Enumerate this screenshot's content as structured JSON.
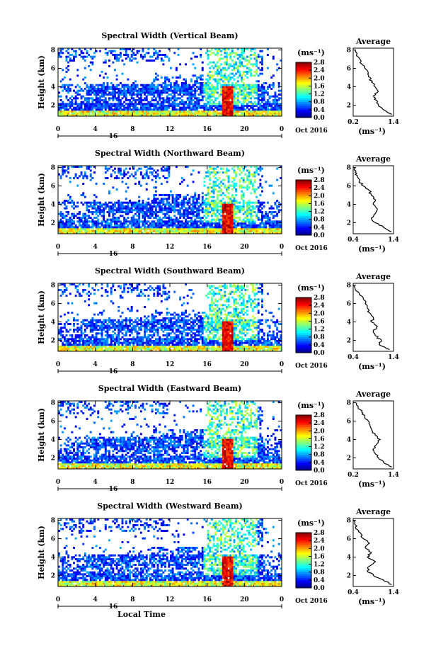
{
  "figure": {
    "xlabel": "Local Time",
    "date_label": "Oct 2016",
    "day_label": "16",
    "y_label": "Height (km)",
    "unit_label": "(ms⁻¹)",
    "average_title": "Average",
    "x_ticks": [
      "0",
      "4",
      "8",
      "12",
      "16",
      "20",
      "0"
    ],
    "y_ticks": [
      "2",
      "4",
      "6",
      "8"
    ],
    "colorbar_ticks": [
      "0.0",
      "0.4",
      "0.8",
      "1.2",
      "1.6",
      "2.0",
      "2.4",
      "2.8"
    ]
  },
  "colors": {
    "colormap": [
      "#000080",
      "#0000ff",
      "#0080ff",
      "#00ffff",
      "#80ff80",
      "#ffff00",
      "#ff8000",
      "#ff0000",
      "#800000"
    ],
    "axis": "#000000",
    "profile_line": "#000000"
  },
  "chart_data": [
    {
      "type": "heatmap",
      "title": "Spectral Width (Vertical Beam)",
      "xlabel": "",
      "ylabel": "Height (km)",
      "xlim": [
        0,
        24
      ],
      "ylim": [
        0.8,
        8.2
      ],
      "colorbar_range": [
        0.0,
        2.8
      ],
      "profile": {
        "title": "Average",
        "xlabel": "(ms⁻¹)",
        "xticks": [
          "0.2",
          "1.4"
        ],
        "xlim": [
          0.2,
          1.4
        ],
        "heights": [
          1.0,
          1.5,
          2.0,
          2.5,
          3.0,
          3.5,
          4.0,
          4.5,
          5.0,
          5.5,
          6.0,
          6.5,
          7.0,
          7.5,
          8.0
        ],
        "values": [
          1.35,
          1.1,
          0.95,
          0.9,
          0.8,
          0.95,
          0.85,
          0.75,
          0.7,
          0.65,
          0.55,
          0.45,
          0.4,
          0.3,
          0.25
        ]
      }
    },
    {
      "type": "heatmap",
      "title": "Spectral Width (Northward Beam)",
      "xlabel": "",
      "ylabel": "Height (km)",
      "xlim": [
        0,
        24
      ],
      "ylim": [
        0.8,
        8.2
      ],
      "colorbar_range": [
        0.0,
        2.8
      ],
      "profile": {
        "title": "Average",
        "xlabel": "(ms⁻¹)",
        "xticks": [
          "0.4",
          "1.4"
        ],
        "xlim": [
          0.4,
          1.4
        ],
        "heights": [
          1.0,
          1.5,
          2.0,
          2.5,
          3.0,
          3.5,
          4.0,
          4.5,
          5.0,
          5.5,
          6.0,
          6.5,
          7.0,
          7.5,
          8.0
        ],
        "values": [
          1.35,
          1.15,
          0.95,
          0.85,
          0.95,
          1.0,
          0.9,
          0.95,
          0.85,
          0.8,
          0.65,
          0.55,
          0.5,
          0.45,
          0.45
        ]
      }
    },
    {
      "type": "heatmap",
      "title": "Spectral Width (Southward Beam)",
      "xlabel": "",
      "ylabel": "Height (km)",
      "xlim": [
        0,
        24
      ],
      "ylim": [
        0.8,
        8.2
      ],
      "colorbar_range": [
        0.0,
        2.8
      ],
      "profile": {
        "title": "Average",
        "xlabel": "(ms⁻¹)",
        "xticks": [
          "0.4",
          "1.4"
        ],
        "xlim": [
          0.4,
          1.4
        ],
        "heights": [
          1.0,
          1.5,
          2.0,
          2.5,
          3.0,
          3.5,
          4.0,
          4.5,
          5.0,
          5.5,
          6.0,
          6.5,
          7.0,
          7.5,
          8.0
        ],
        "values": [
          1.3,
          1.05,
          1.1,
          0.95,
          0.9,
          1.0,
          0.85,
          0.9,
          0.8,
          0.75,
          0.7,
          0.65,
          0.55,
          0.45,
          0.4
        ]
      }
    },
    {
      "type": "heatmap",
      "title": "Spectral Width (Eastward Beam)",
      "xlabel": "",
      "ylabel": "Height (km)",
      "xlim": [
        0,
        24
      ],
      "ylim": [
        0.8,
        8.2
      ],
      "colorbar_range": [
        0.0,
        2.8
      ],
      "profile": {
        "title": "Average",
        "xlabel": "(ms⁻¹)",
        "xticks": [
          "0.2",
          "1.4"
        ],
        "xlim": [
          0.2,
          1.4
        ],
        "heights": [
          1.0,
          1.5,
          2.0,
          2.5,
          3.0,
          3.5,
          4.0,
          4.5,
          5.0,
          5.5,
          6.0,
          6.5,
          7.0,
          7.5,
          8.0
        ],
        "values": [
          1.35,
          1.1,
          0.95,
          0.85,
          0.8,
          0.9,
          1.0,
          0.85,
          0.75,
          0.7,
          0.65,
          0.55,
          0.45,
          0.35,
          0.3
        ]
      }
    },
    {
      "type": "heatmap",
      "title": "Spectral Width (Westward Beam)",
      "xlabel": "Local Time",
      "ylabel": "Height (km)",
      "xlim": [
        0,
        24
      ],
      "ylim": [
        0.8,
        8.2
      ],
      "colorbar_range": [
        0.0,
        2.8
      ],
      "profile": {
        "title": "Average",
        "xlabel": "(ms⁻¹)",
        "xticks": [
          "0.4",
          "1.4"
        ],
        "xlim": [
          0.4,
          1.4
        ],
        "heights": [
          1.0,
          1.5,
          2.0,
          2.5,
          3.0,
          3.5,
          4.0,
          4.5,
          5.0,
          5.5,
          6.0,
          6.5,
          7.0,
          7.5,
          8.0
        ],
        "values": [
          1.35,
          1.15,
          0.9,
          0.75,
          0.8,
          0.95,
          0.75,
          0.85,
          0.7,
          0.8,
          0.65,
          0.6,
          0.5,
          0.45,
          0.4
        ]
      }
    }
  ]
}
